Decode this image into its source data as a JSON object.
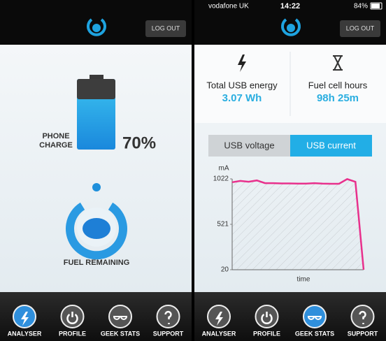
{
  "status_bar": {
    "carrier": "vodafone UK",
    "time": "14:22",
    "battery": "84%"
  },
  "header": {
    "logout": "LOG OUT"
  },
  "analyser": {
    "charge_label": [
      "PHONE",
      "CHARGE"
    ],
    "charge": "70%",
    "fuel_label": "FUEL REMAINING"
  },
  "geek_stats": {
    "usb_energy": {
      "label": "Total USB energy",
      "value": "3.07 Wh"
    },
    "fuel_hours": {
      "label": "Fuel cell hours",
      "value": "98h 25m"
    },
    "tabs": [
      "USB voltage",
      "USB current"
    ],
    "active_tab": 1,
    "chart": {
      "type": "line",
      "y_label": "mA",
      "x_label": "time",
      "color": "#e8308c",
      "values": [
        985,
        1000,
        990,
        1005,
        975,
        975,
        972,
        972,
        970,
        970,
        975,
        970,
        968,
        968,
        1020,
        990,
        20
      ],
      "ylim": [
        20,
        1022
      ],
      "yticks": [
        20,
        521,
        1022
      ]
    }
  },
  "nav": {
    "items": [
      "ANALYSER",
      "PROFILE",
      "GEEK STATS",
      "SUPPORT"
    ],
    "left_active": 0,
    "right_active": 2
  }
}
